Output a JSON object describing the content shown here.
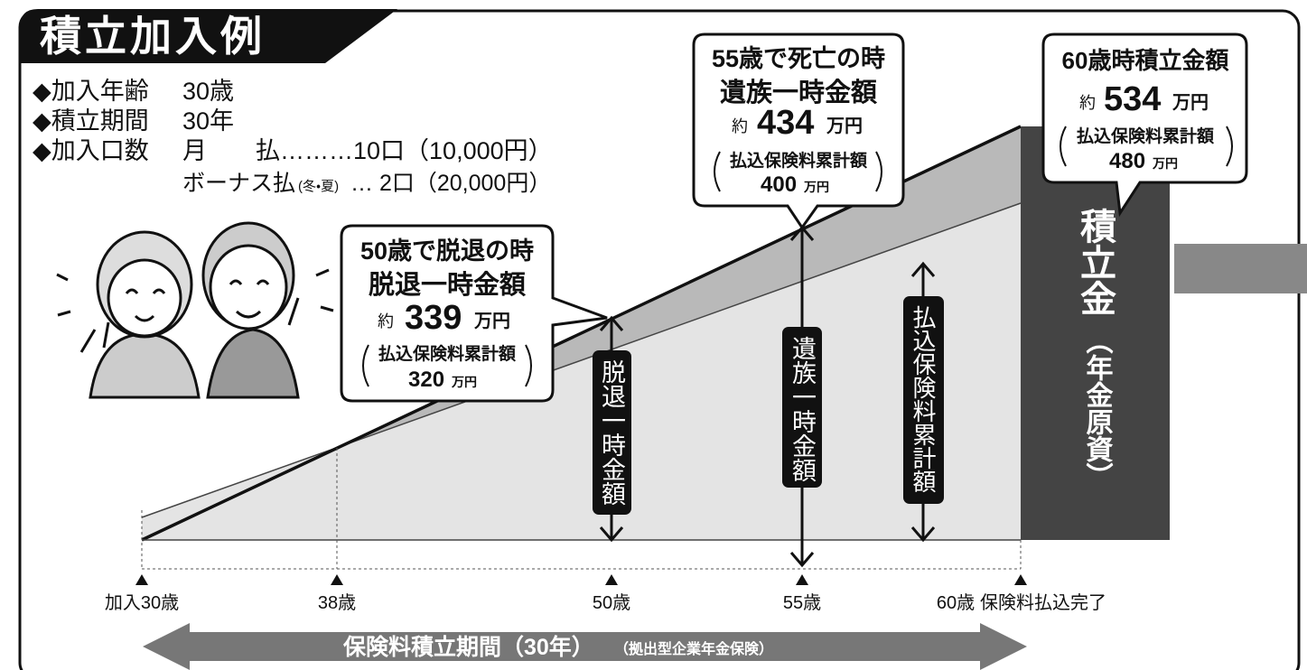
{
  "title": "積立加入例",
  "conditions": [
    {
      "label": "◆加入年齢",
      "value": "30歳"
    },
    {
      "label": "◆積立期間",
      "value": "30年"
    },
    {
      "label": "◆加入口数",
      "value": "月　　払………10口（10,000円）"
    }
  ],
  "bonus": {
    "label": "ボーナス払",
    "note": "(冬・夏)",
    "value": "… 2口（20,000円）"
  },
  "callouts": [
    {
      "heading": "50歳で脱退の時",
      "name": "脱退一時金額",
      "prefix": "約",
      "amount": "339",
      "unit": "万円",
      "premium_label": "払込保険料累計額",
      "premium_amount": "320",
      "premium_unit": "万円"
    },
    {
      "heading": "55歳で死亡の時",
      "name": "遺族一時金額",
      "prefix": "約",
      "amount": "434",
      "unit": "万円",
      "premium_label": "払込保険料累計額",
      "premium_amount": "400",
      "premium_unit": "万円"
    },
    {
      "heading": "60歳時積立金額",
      "prefix": "約",
      "amount": "534",
      "unit": "万円",
      "premium_label": "払込保険料累計額",
      "premium_amount": "480",
      "premium_unit": "万円"
    }
  ],
  "arrow_labels": [
    "脱退一時金額",
    "遺族一時金額",
    "払込保険料累計額"
  ],
  "fund_label": "積立金",
  "fund_note": "（年金原資）",
  "timeline": [
    "加入30歳",
    "38歳",
    "50歳",
    "55歳",
    "60歳",
    "保険料払込完了"
  ],
  "period": {
    "label": "保険料積立期間（30年）",
    "note": "（拠出型企業年金保険）"
  }
}
